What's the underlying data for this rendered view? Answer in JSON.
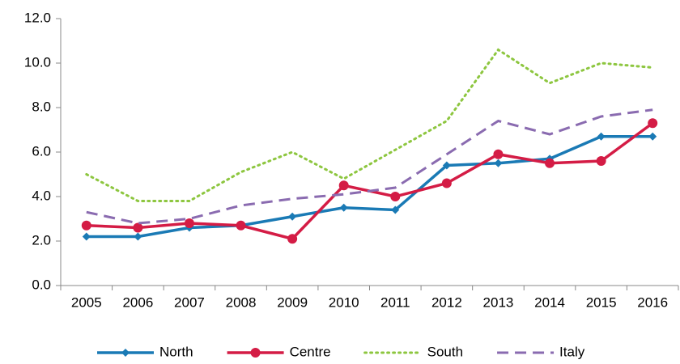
{
  "chart_data": {
    "type": "line",
    "categories": [
      "2005",
      "2006",
      "2007",
      "2008",
      "2009",
      "2010",
      "2011",
      "2012",
      "2013",
      "2014",
      "2015",
      "2016"
    ],
    "series": [
      {
        "name": "North",
        "color": "#1a7ab5",
        "style": "solid-diamond",
        "values": [
          2.2,
          2.2,
          2.6,
          2.7,
          3.1,
          3.5,
          3.4,
          5.4,
          5.5,
          5.7,
          6.7,
          6.7
        ]
      },
      {
        "name": "Centre",
        "color": "#d41c45",
        "style": "solid-circle",
        "values": [
          2.7,
          2.6,
          2.8,
          2.7,
          2.1,
          4.5,
          4.0,
          4.6,
          5.9,
          5.5,
          5.6,
          7.3
        ]
      },
      {
        "name": "South",
        "color": "#8dc63f",
        "style": "dotted",
        "values": [
          5.0,
          3.8,
          3.8,
          5.1,
          6.0,
          4.8,
          6.1,
          7.4,
          10.6,
          9.1,
          10.0,
          9.8
        ]
      },
      {
        "name": "Italy",
        "color": "#8a6bb0",
        "style": "dashed",
        "values": [
          3.3,
          2.8,
          3.0,
          3.6,
          3.9,
          4.1,
          4.4,
          5.9,
          7.4,
          6.8,
          7.6,
          7.9
        ]
      }
    ],
    "ylim": [
      0,
      12
    ],
    "yticks": [
      {
        "value": 0,
        "label": "0.0"
      },
      {
        "value": 2,
        "label": "2.0"
      },
      {
        "value": 4,
        "label": "4.0"
      },
      {
        "value": 6,
        "label": "6.0"
      },
      {
        "value": 8,
        "label": "8.0"
      },
      {
        "value": 10,
        "label": "10.0"
      },
      {
        "value": 12,
        "label": "12.0"
      }
    ],
    "legend": "bottom"
  }
}
